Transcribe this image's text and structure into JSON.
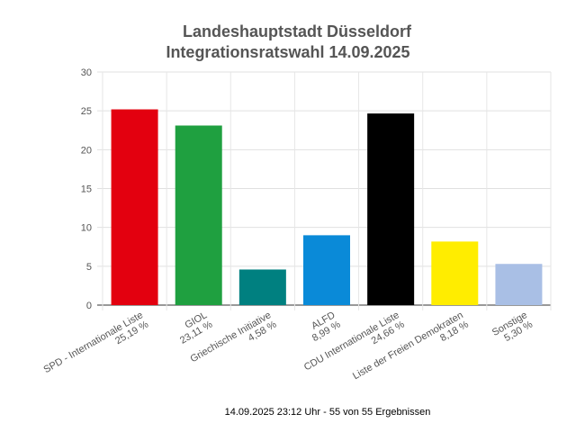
{
  "chart_data": {
    "type": "bar",
    "title": [
      "Landeshauptstadt Düsseldorf",
      "Integrationsratswahl 14.09.2025"
    ],
    "categories": [
      "SPD - Internationale Liste",
      "GIOL",
      "Griechische Initiative",
      "ALFD",
      "CDU Internationale Liste",
      "Liste der Freien Demokraten",
      "Sonstige"
    ],
    "value_labels": [
      "25,19 %",
      "23,11 %",
      "4,58 %",
      "8,99 %",
      "24,66 %",
      "8,18 %",
      "5,30 %"
    ],
    "values": [
      25.19,
      23.11,
      4.58,
      8.99,
      24.66,
      8.18,
      5.3
    ],
    "colors": [
      "#e3000f",
      "#1fa040",
      "#008080",
      "#0a8ad8",
      "#000000",
      "#ffed00",
      "#a9bfe5"
    ],
    "ylim": [
      0,
      30
    ],
    "yticks": [
      0,
      5,
      10,
      15,
      20,
      25,
      30
    ],
    "grid": true,
    "xlabel": "",
    "ylabel": ""
  },
  "footer": "14.09.2025 23:12 Uhr - 55 von 55 Ergebnissen"
}
